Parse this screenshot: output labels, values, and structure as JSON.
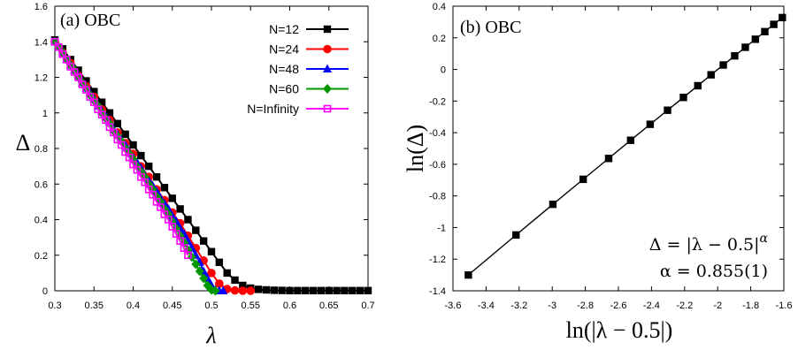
{
  "chart_data": [
    {
      "type": "line",
      "panel_label": "(a) OBC",
      "xlabel": "λ",
      "ylabel": "Δ",
      "xlim": [
        0.3,
        0.7
      ],
      "ylim": [
        0,
        1.6
      ],
      "xticks": [
        "0.3",
        "0.35",
        "0.4",
        "0.45",
        "0.5",
        "0.55",
        "0.6",
        "0.65",
        "0.7"
      ],
      "yticks": [
        "0",
        "0.2",
        "0.4",
        "0.6",
        "0.8",
        "1",
        "1.2",
        "1.4",
        "1.6"
      ],
      "legend_position": "top-right",
      "series": [
        {
          "name": "N=12",
          "color": "#000000",
          "marker": "square",
          "x": [
            0.3,
            0.31,
            0.32,
            0.33,
            0.34,
            0.35,
            0.36,
            0.37,
            0.38,
            0.39,
            0.4,
            0.41,
            0.42,
            0.43,
            0.44,
            0.45,
            0.46,
            0.47,
            0.48,
            0.49,
            0.5,
            0.51,
            0.52,
            0.53,
            0.54,
            0.55,
            0.56,
            0.57,
            0.58,
            0.59,
            0.6,
            0.61,
            0.62,
            0.63,
            0.64,
            0.65,
            0.66,
            0.67,
            0.68,
            0.69,
            0.7
          ],
          "y": [
            1.41,
            1.36,
            1.3,
            1.24,
            1.18,
            1.12,
            1.06,
            1.0,
            0.94,
            0.88,
            0.82,
            0.76,
            0.7,
            0.64,
            0.58,
            0.52,
            0.46,
            0.4,
            0.34,
            0.28,
            0.22,
            0.16,
            0.1,
            0.06,
            0.03,
            0.015,
            0.008,
            0.005,
            0.003,
            0.002,
            0.001,
            0.001,
            0.001,
            0.001,
            0.001,
            0.001,
            0.001,
            0.001,
            0.001,
            0.001,
            0.001
          ]
        },
        {
          "name": "N=24",
          "color": "#ff0000",
          "marker": "circle",
          "x": [
            0.3,
            0.31,
            0.32,
            0.33,
            0.34,
            0.35,
            0.36,
            0.37,
            0.38,
            0.39,
            0.4,
            0.41,
            0.42,
            0.43,
            0.44,
            0.45,
            0.46,
            0.47,
            0.48,
            0.49,
            0.5,
            0.51,
            0.52,
            0.53,
            0.54,
            0.55
          ],
          "y": [
            1.4,
            1.34,
            1.28,
            1.21,
            1.15,
            1.09,
            1.02,
            0.96,
            0.89,
            0.83,
            0.77,
            0.7,
            0.64,
            0.57,
            0.51,
            0.44,
            0.38,
            0.31,
            0.24,
            0.17,
            0.1,
            0.04,
            0.01,
            0.002,
            0.0,
            0.0
          ]
        },
        {
          "name": "N=48",
          "color": "#0000ff",
          "marker": "triangle",
          "x": [
            0.3,
            0.305,
            0.31,
            0.315,
            0.32,
            0.325,
            0.33,
            0.335,
            0.34,
            0.345,
            0.35,
            0.355,
            0.36,
            0.365,
            0.37,
            0.375,
            0.38,
            0.385,
            0.39,
            0.395,
            0.4,
            0.405,
            0.41,
            0.415,
            0.42,
            0.425,
            0.43,
            0.435,
            0.44,
            0.445,
            0.45,
            0.455,
            0.46,
            0.465,
            0.47,
            0.475,
            0.48,
            0.485,
            0.49,
            0.495,
            0.5,
            0.505,
            0.51,
            0.515
          ],
          "y": [
            1.4,
            1.37,
            1.34,
            1.3,
            1.27,
            1.24,
            1.21,
            1.17,
            1.14,
            1.11,
            1.08,
            1.04,
            1.01,
            0.98,
            0.95,
            0.91,
            0.88,
            0.85,
            0.82,
            0.78,
            0.75,
            0.72,
            0.69,
            0.65,
            0.62,
            0.59,
            0.56,
            0.52,
            0.49,
            0.46,
            0.42,
            0.39,
            0.35,
            0.32,
            0.28,
            0.24,
            0.2,
            0.16,
            0.11,
            0.07,
            0.03,
            0.005,
            0.0,
            0.0
          ]
        },
        {
          "name": "N=60",
          "color": "#009900",
          "marker": "diamond",
          "x": [
            0.3,
            0.305,
            0.31,
            0.315,
            0.32,
            0.325,
            0.33,
            0.335,
            0.34,
            0.345,
            0.35,
            0.355,
            0.36,
            0.365,
            0.37,
            0.375,
            0.38,
            0.385,
            0.39,
            0.395,
            0.4,
            0.405,
            0.41,
            0.415,
            0.42,
            0.425,
            0.43,
            0.435,
            0.44,
            0.445,
            0.45,
            0.455,
            0.46,
            0.465,
            0.47,
            0.475,
            0.48,
            0.485,
            0.49,
            0.495,
            0.5,
            0.505
          ],
          "y": [
            1.4,
            1.37,
            1.34,
            1.3,
            1.27,
            1.24,
            1.2,
            1.17,
            1.14,
            1.1,
            1.07,
            1.04,
            1.0,
            0.97,
            0.94,
            0.9,
            0.87,
            0.84,
            0.8,
            0.77,
            0.74,
            0.7,
            0.67,
            0.64,
            0.6,
            0.57,
            0.53,
            0.5,
            0.46,
            0.43,
            0.39,
            0.35,
            0.31,
            0.27,
            0.23,
            0.19,
            0.15,
            0.11,
            0.07,
            0.03,
            0.005,
            0.0
          ]
        },
        {
          "name": "N=Infinity",
          "color": "#ff00ff",
          "marker": "open-square",
          "x": [
            0.3,
            0.305,
            0.31,
            0.315,
            0.32,
            0.325,
            0.33,
            0.335,
            0.34,
            0.345,
            0.35,
            0.355,
            0.36,
            0.365,
            0.37,
            0.375,
            0.38,
            0.385,
            0.39,
            0.395,
            0.4,
            0.405,
            0.41,
            0.415,
            0.42,
            0.425,
            0.43,
            0.435,
            0.44,
            0.445,
            0.45,
            0.455,
            0.46,
            0.465,
            0.47
          ],
          "y": [
            1.4,
            1.37,
            1.33,
            1.3,
            1.26,
            1.23,
            1.2,
            1.16,
            1.13,
            1.09,
            1.06,
            1.02,
            0.99,
            0.96,
            0.92,
            0.89,
            0.85,
            0.82,
            0.78,
            0.75,
            0.71,
            0.68,
            0.64,
            0.61,
            0.57,
            0.54,
            0.5,
            0.47,
            0.43,
            0.4,
            0.36,
            0.32,
            0.28,
            0.24,
            0.2
          ]
        }
      ]
    },
    {
      "type": "line",
      "panel_label": "(b) OBC",
      "xlabel": "ln(|λ − 0.5|)",
      "ylabel": "ln(Δ)",
      "xlim": [
        -3.6,
        -1.6
      ],
      "ylim": [
        -1.4,
        0.4
      ],
      "xticks": [
        "-3.6",
        "-3.4",
        "-3.2",
        "-3",
        "-2.8",
        "-2.6",
        "-2.4",
        "-2.2",
        "-2",
        "-1.8",
        "-1.6"
      ],
      "yticks": [
        "-1.4",
        "-1.2",
        "-1",
        "-0.8",
        "-0.6",
        "-0.4",
        "-0.2",
        "0",
        "0.2",
        "0.4"
      ],
      "annotation_formula": "Δ = |λ − 0.5|",
      "annotation_formula_exponent": "α",
      "annotation_alpha": "α = 0.855(1)",
      "series": [
        {
          "color": "#000000",
          "marker": "square",
          "x": [
            -3.507,
            -3.219,
            -2.996,
            -2.813,
            -2.659,
            -2.526,
            -2.408,
            -2.303,
            -2.207,
            -2.12,
            -2.04,
            -1.966,
            -1.897,
            -1.833,
            -1.772,
            -1.715,
            -1.661,
            -1.609
          ],
          "y": [
            -1.3,
            -1.047,
            -0.853,
            -0.695,
            -0.563,
            -0.448,
            -0.347,
            -0.258,
            -0.177,
            -0.103,
            -0.034,
            0.028,
            0.086,
            0.14,
            0.191,
            0.239,
            0.285,
            0.328
          ]
        }
      ]
    }
  ]
}
